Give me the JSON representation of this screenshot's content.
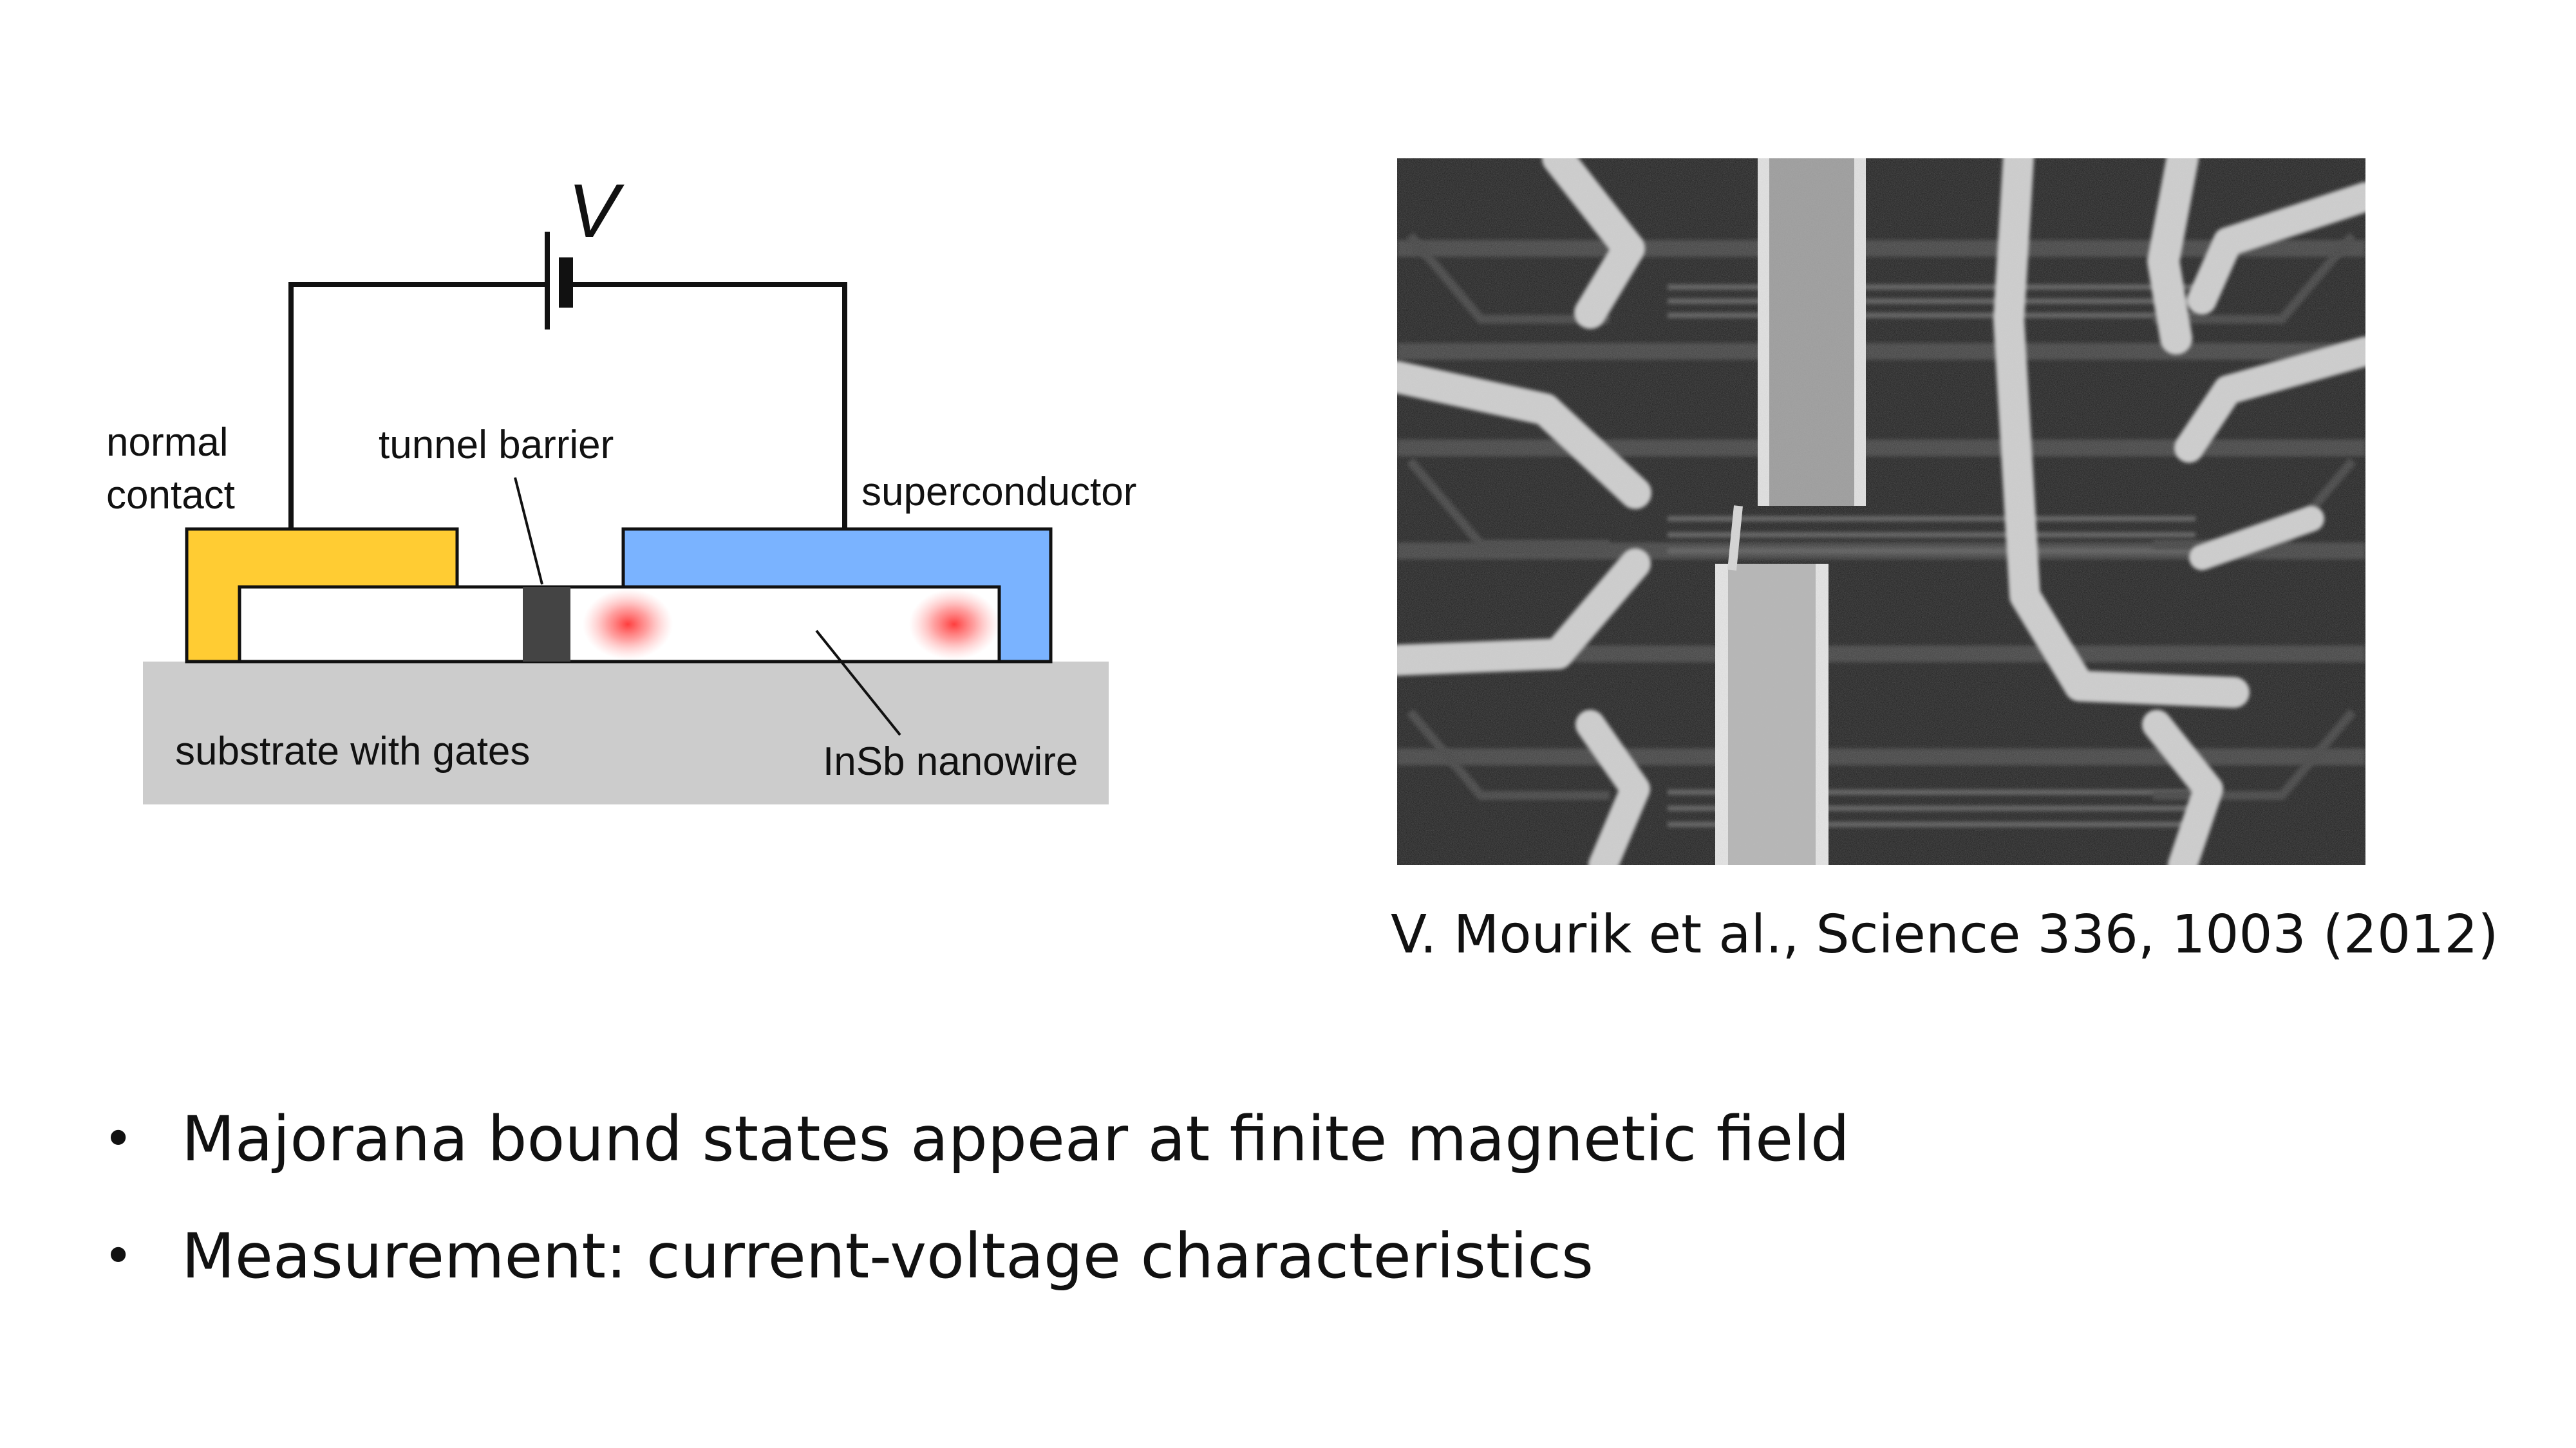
{
  "diagram": {
    "voltage_label": "V",
    "normal_contact_label": [
      "normal",
      "contact"
    ],
    "tunnel_barrier_label": "tunnel barrier",
    "superconductor_label": "superconductor",
    "substrate_label": "substrate with gates",
    "nanowire_label": "InSb nanowire",
    "colors": {
      "normal_contact": "#ffcc33",
      "superconductor": "#7ab3ff",
      "substrate": "#cccccc",
      "barrier": "#444444",
      "majorana": "#ff3333"
    }
  },
  "image": {
    "subject": "SEM micrograph of nanowire device",
    "citation": "V. Mourik et al., Science 336, 1003 (2012)"
  },
  "bullets": [
    "Majorana bound states appear at finite magnetic field",
    "Measurement: current-voltage characteristics"
  ]
}
